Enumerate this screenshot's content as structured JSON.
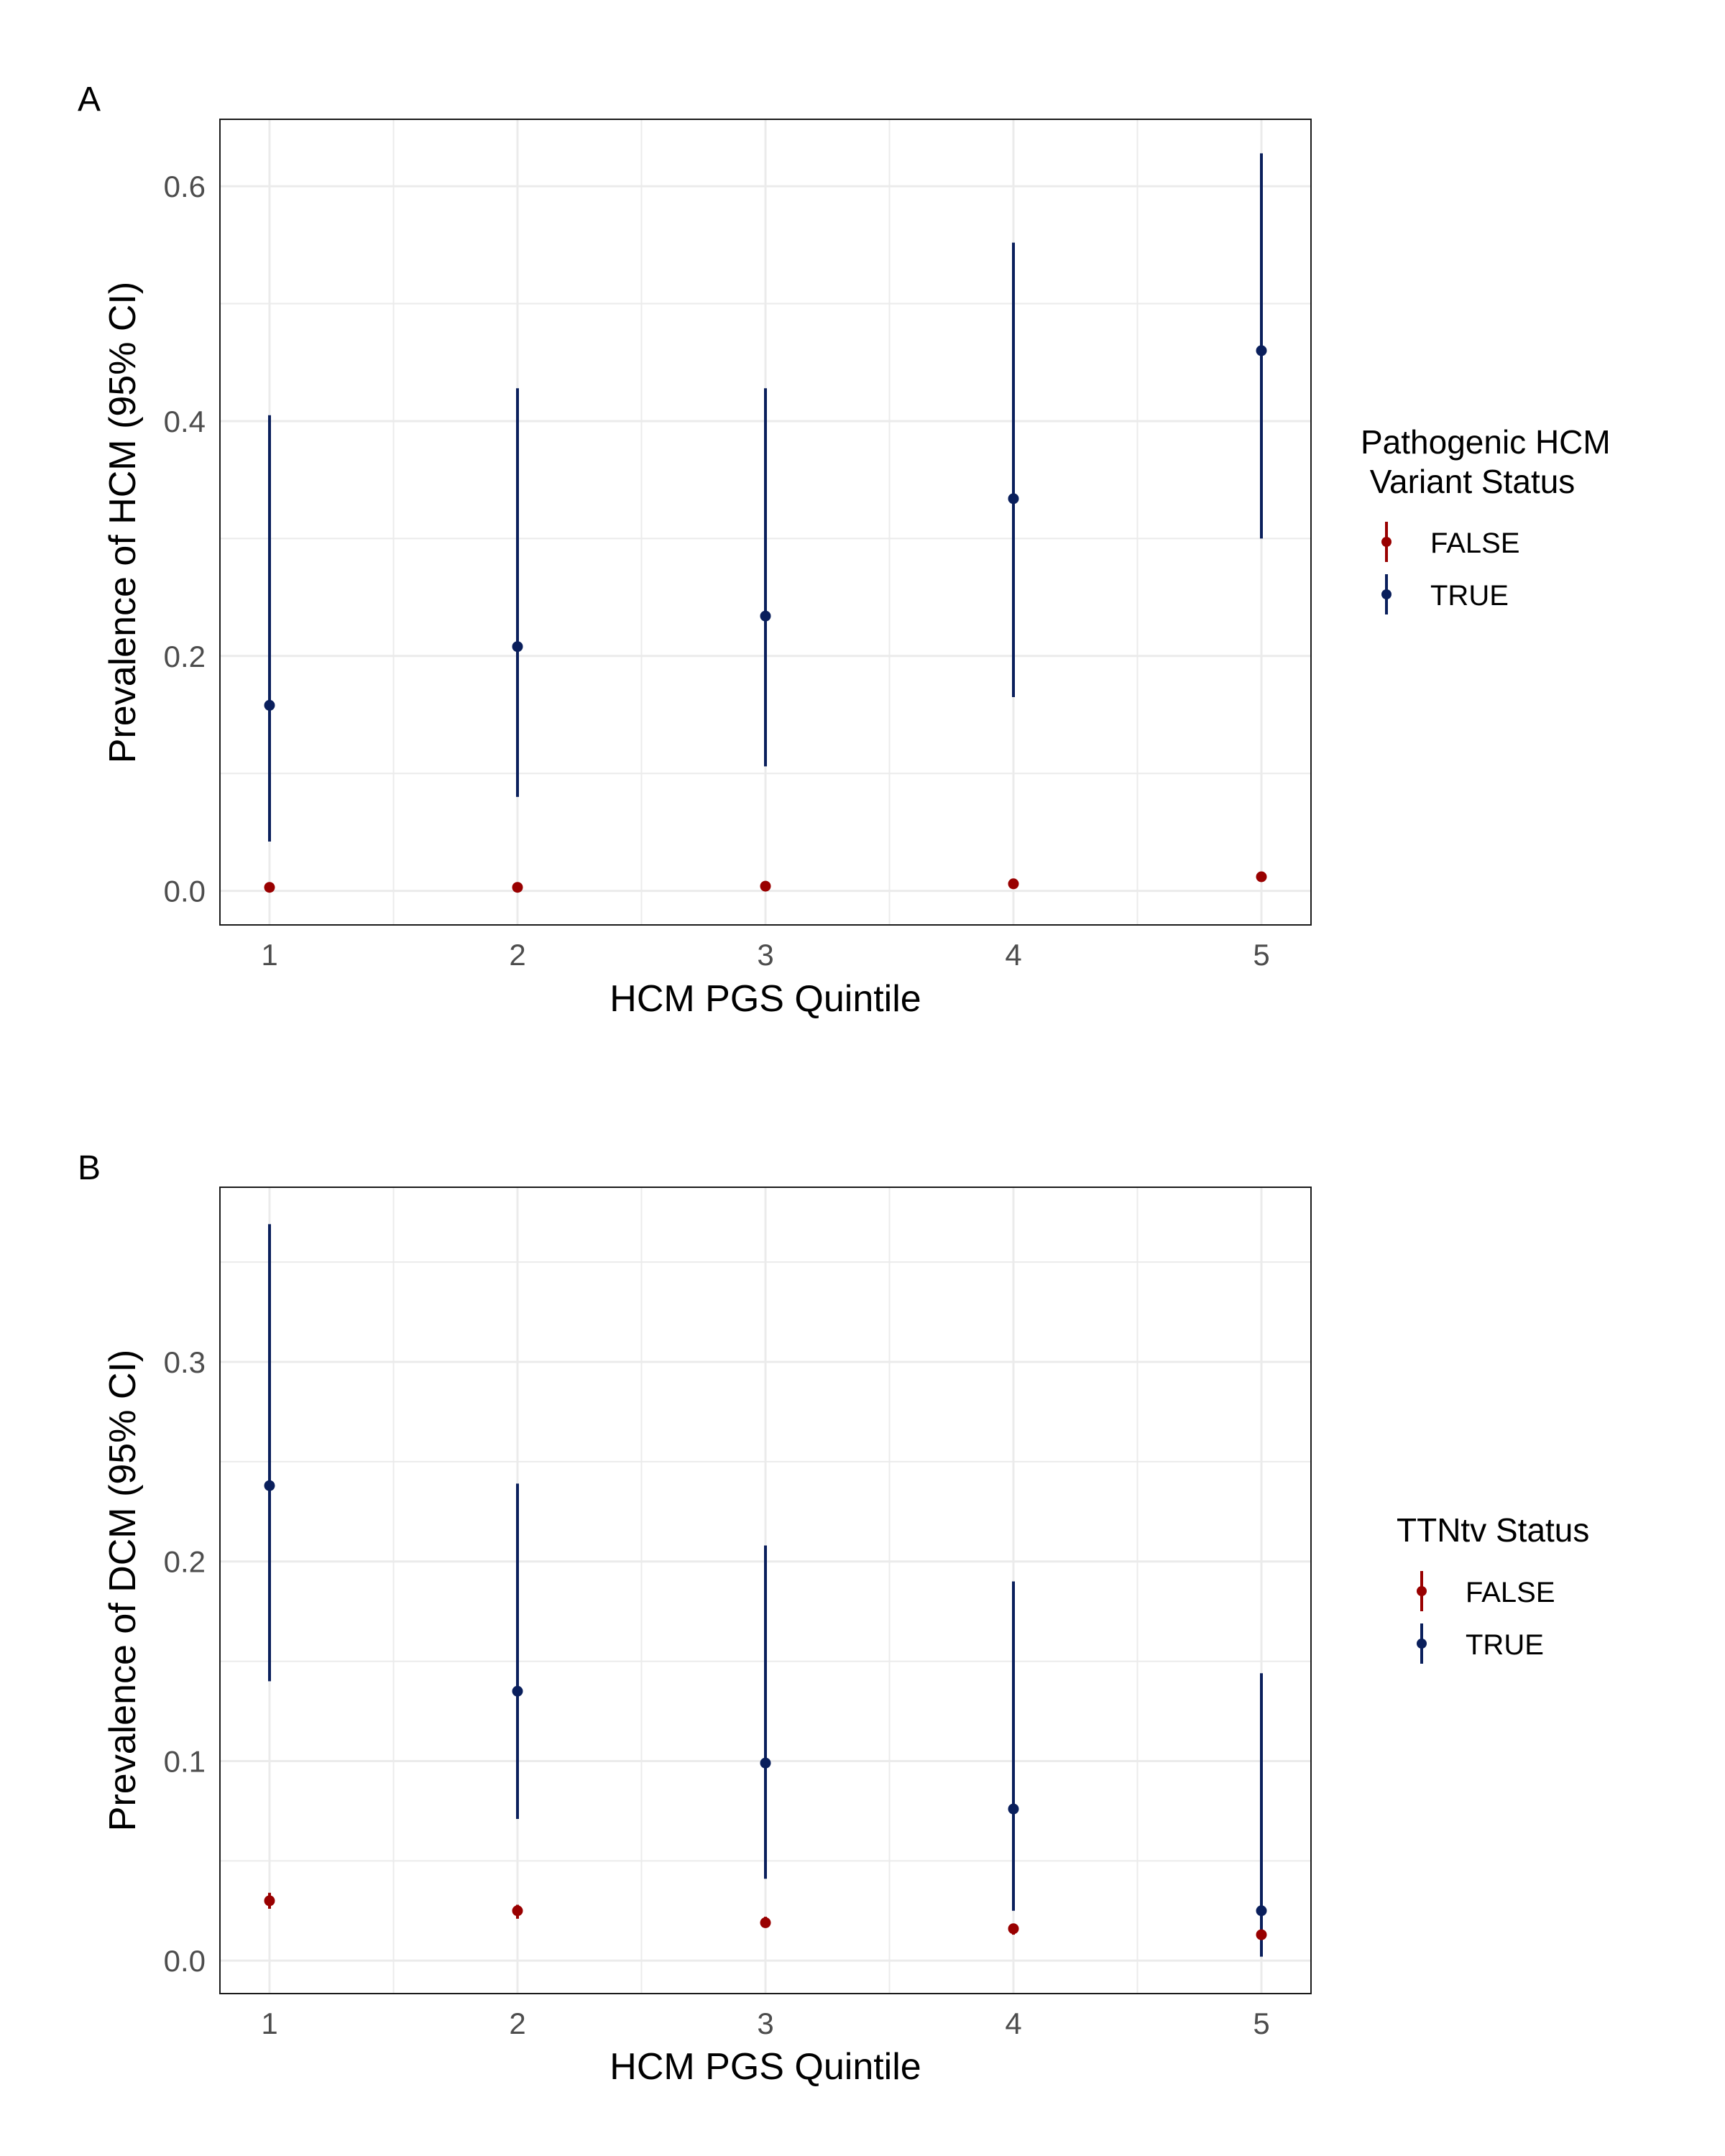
{
  "chart_data": [
    {
      "panel_label": "A",
      "type": "scatter",
      "xlabel": "HCM PGS Quintile",
      "ylabel": "Prevalence of HCM (95% CI)",
      "categories": [
        "1",
        "2",
        "3",
        "4",
        "5"
      ],
      "xlim": [
        0.8,
        5.2
      ],
      "ylim": [
        -0.029,
        0.657
      ],
      "y_ticks": [
        "0.0",
        "0.2",
        "0.4",
        "0.6"
      ],
      "legend": {
        "title_lines": [
          "Pathogenic HCM",
          " Variant Status"
        ],
        "entries": [
          "FALSE",
          "TRUE"
        ],
        "placement": "right"
      },
      "series": [
        {
          "name": "FALSE",
          "color": "#990000",
          "points": [
            {
              "x": 1,
              "y": 0.003,
              "lo": 0.002,
              "hi": 0.004
            },
            {
              "x": 2,
              "y": 0.003,
              "lo": 0.002,
              "hi": 0.004
            },
            {
              "x": 3,
              "y": 0.004,
              "lo": 0.003,
              "hi": 0.005
            },
            {
              "x": 4,
              "y": 0.006,
              "lo": 0.005,
              "hi": 0.007
            },
            {
              "x": 5,
              "y": 0.012,
              "lo": 0.011,
              "hi": 0.013
            }
          ]
        },
        {
          "name": "TRUE",
          "color": "#0a1f5c",
          "points": [
            {
              "x": 1,
              "y": 0.158,
              "lo": 0.042,
              "hi": 0.405
            },
            {
              "x": 2,
              "y": 0.208,
              "lo": 0.08,
              "hi": 0.428
            },
            {
              "x": 3,
              "y": 0.234,
              "lo": 0.106,
              "hi": 0.428
            },
            {
              "x": 4,
              "y": 0.334,
              "lo": 0.165,
              "hi": 0.552
            },
            {
              "x": 5,
              "y": 0.46,
              "lo": 0.3,
              "hi": 0.628
            }
          ]
        }
      ]
    },
    {
      "panel_label": "B",
      "type": "scatter",
      "xlabel": "HCM PGS Quintile",
      "ylabel": "Prevalence of DCM (95% CI)",
      "categories": [
        "1",
        "2",
        "3",
        "4",
        "5"
      ],
      "xlim": [
        0.8,
        5.2
      ],
      "ylim": [
        -0.0165,
        0.3875
      ],
      "y_ticks": [
        "0.0",
        "0.1",
        "0.2",
        "0.3"
      ],
      "legend": {
        "title_lines": [
          "TTNtv Status"
        ],
        "entries": [
          "FALSE",
          "TRUE"
        ],
        "placement": "right"
      },
      "series": [
        {
          "name": "FALSE",
          "color": "#990000",
          "points": [
            {
              "x": 1,
              "y": 0.03,
              "lo": 0.026,
              "hi": 0.034
            },
            {
              "x": 2,
              "y": 0.025,
              "lo": 0.021,
              "hi": 0.028
            },
            {
              "x": 3,
              "y": 0.019,
              "lo": 0.017,
              "hi": 0.022
            },
            {
              "x": 4,
              "y": 0.016,
              "lo": 0.013,
              "hi": 0.018
            },
            {
              "x": 5,
              "y": 0.013,
              "lo": 0.011,
              "hi": 0.015
            }
          ]
        },
        {
          "name": "TRUE",
          "color": "#0a1f5c",
          "points": [
            {
              "x": 1,
              "y": 0.238,
              "lo": 0.14,
              "hi": 0.369
            },
            {
              "x": 2,
              "y": 0.135,
              "lo": 0.071,
              "hi": 0.239
            },
            {
              "x": 3,
              "y": 0.099,
              "lo": 0.041,
              "hi": 0.208
            },
            {
              "x": 4,
              "y": 0.076,
              "lo": 0.025,
              "hi": 0.19
            },
            {
              "x": 5,
              "y": 0.025,
              "lo": 0.002,
              "hi": 0.144
            }
          ]
        }
      ]
    }
  ]
}
